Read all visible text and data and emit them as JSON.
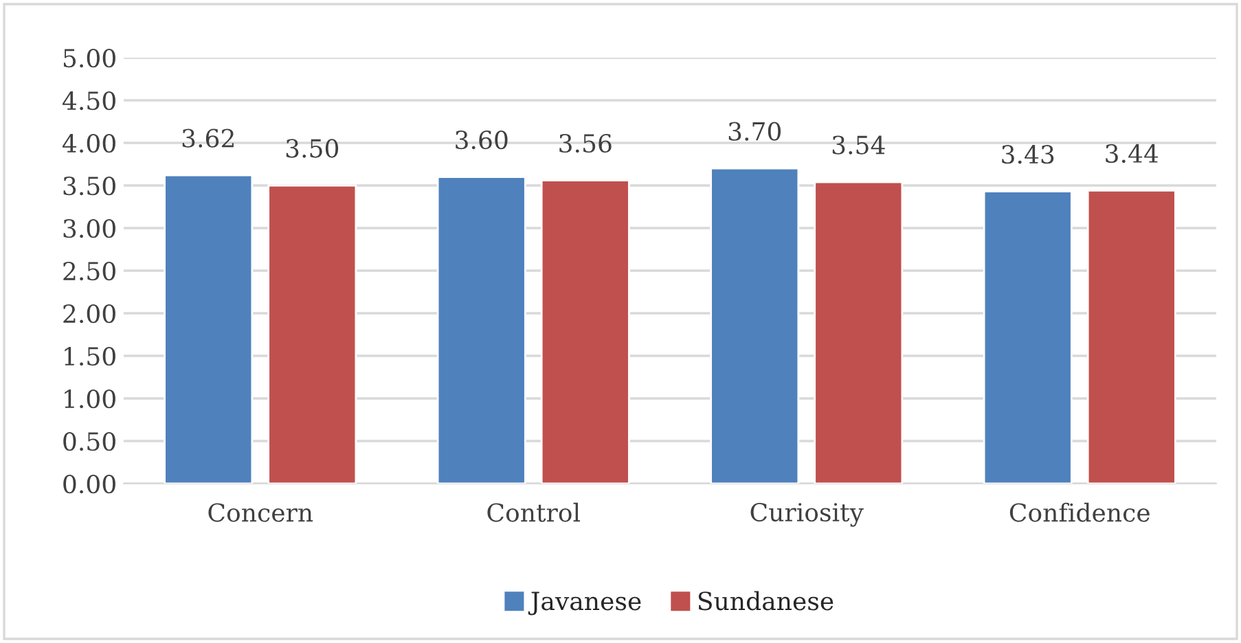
{
  "chart_data": {
    "type": "bar",
    "categories": [
      "Concern",
      "Control",
      "Curiosity",
      "Confidence"
    ],
    "series": [
      {
        "name": "Javanese",
        "color": "#4f81bd",
        "values": [
          3.62,
          3.6,
          3.7,
          3.43
        ]
      },
      {
        "name": "Sundanese",
        "color": "#c0504d",
        "values": [
          3.5,
          3.56,
          3.54,
          3.44
        ]
      }
    ],
    "value_labels": [
      [
        "3.62",
        "3.60",
        "3.70",
        "3.43"
      ],
      [
        "3.50",
        "3.56",
        "3.54",
        "3.44"
      ]
    ],
    "ylim": [
      0,
      5
    ],
    "yticks": [
      {
        "value": 0,
        "label": "0.00"
      },
      {
        "value": 0.5,
        "label": "0.50"
      },
      {
        "value": 1,
        "label": "1.00"
      },
      {
        "value": 1.5,
        "label": "1.50"
      },
      {
        "value": 2,
        "label": "2.00"
      },
      {
        "value": 2.5,
        "label": "2.50"
      },
      {
        "value": 3,
        "label": "3.00"
      },
      {
        "value": 3.5,
        "label": "3.50"
      },
      {
        "value": 4,
        "label": "4.00"
      },
      {
        "value": 4.5,
        "label": "4.50"
      },
      {
        "value": 5,
        "label": "5.00"
      }
    ],
    "grid": "y",
    "legend": "bottom"
  }
}
